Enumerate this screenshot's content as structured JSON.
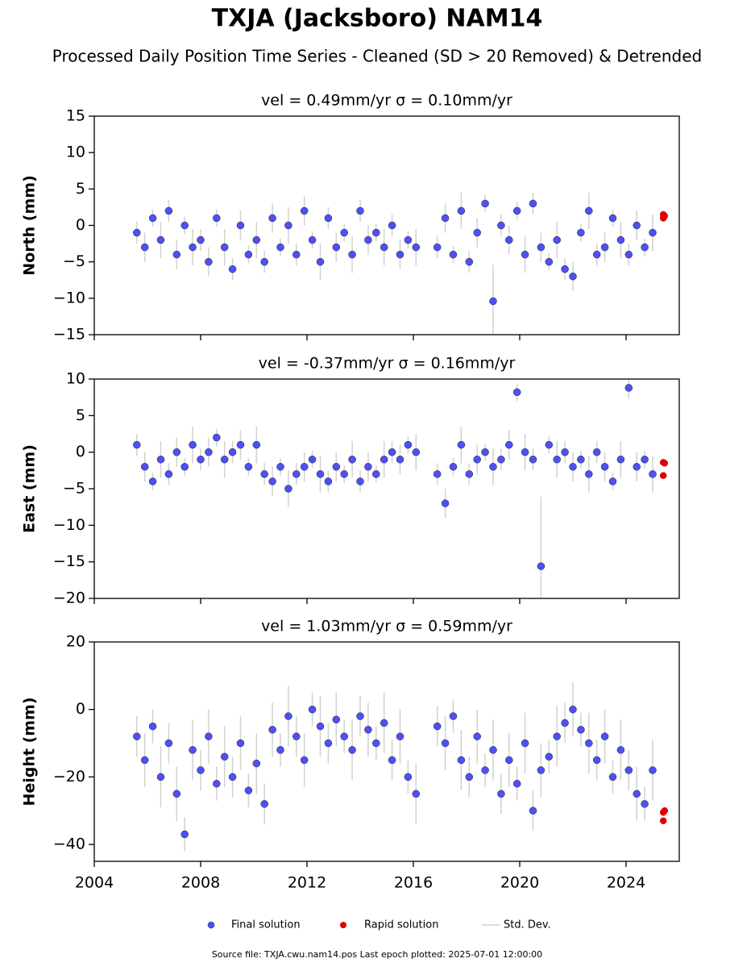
{
  "title": "TXJA (Jacksboro) NAM14",
  "subtitle": "Processed Daily Position Time Series - Cleaned (SD > 20 Removed) & Detrended",
  "error_label": "Std. Dev.",
  "footer": "Source file: TXJA.cwu.nam14.pos  Last epoch plotted: 2025-07-01 12:00:00",
  "chart_data": [
    {
      "type": "scatter",
      "title": "vel = 0.49mm/yr   σ = 0.10mm/yr",
      "y_label": "North (mm)",
      "xlim": [
        2004,
        2026
      ],
      "xticks": [
        2004,
        2008,
        2012,
        2016,
        2020,
        2024
      ],
      "ylim": [
        -15,
        15
      ],
      "yticks": [
        {
          "value": -15,
          "label": "−15"
        },
        {
          "value": -10,
          "label": "−10"
        },
        {
          "value": -5,
          "label": "−5"
        },
        0,
        5,
        10,
        15
      ],
      "error_color": "#999999",
      "series": [
        {
          "name": "Final solution",
          "color": "#4f4ff5",
          "x": [
            2005.6,
            2005.9,
            2006.2,
            2006.5,
            2006.8,
            2007.1,
            2007.4,
            2007.7,
            2008.0,
            2008.3,
            2008.6,
            2008.9,
            2009.2,
            2009.5,
            2009.8,
            2010.1,
            2010.4,
            2010.7,
            2011.0,
            2011.3,
            2011.6,
            2011.9,
            2012.2,
            2012.5,
            2012.8,
            2013.1,
            2013.4,
            2013.7,
            2014.0,
            2014.3,
            2014.6,
            2014.9,
            2015.2,
            2015.5,
            2015.8,
            2016.1,
            2016.9,
            2017.2,
            2017.5,
            2017.8,
            2018.1,
            2018.4,
            2018.7,
            2019.0,
            2019.3,
            2019.6,
            2019.9,
            2020.2,
            2020.5,
            2020.8,
            2021.1,
            2021.4,
            2021.7,
            2022.0,
            2022.3,
            2022.6,
            2022.9,
            2023.2,
            2023.5,
            2023.8,
            2024.1,
            2024.4,
            2024.7,
            2025.0
          ],
          "values": [
            -1,
            -3,
            1,
            -2,
            2,
            -4,
            0,
            -3,
            -2,
            -5,
            1,
            -3,
            -6,
            0,
            -4,
            -2,
            -5,
            1,
            -3,
            0,
            -4,
            2,
            -2,
            -5,
            1,
            -3,
            -1,
            -4,
            2,
            -2,
            -1,
            -3,
            0,
            -4,
            -2,
            -3,
            -3,
            1,
            -4,
            2,
            -5,
            -1,
            3,
            -10.4,
            0,
            -2,
            2,
            -4,
            3,
            -3,
            -5,
            -2,
            -6,
            -7,
            -1,
            2,
            -4,
            -3,
            1,
            -2,
            -4,
            0,
            -3,
            -1
          ],
          "errors": [
            1.5,
            2,
            1.2,
            2.5,
            1.5,
            2,
            1.2,
            2.5,
            1.5,
            2,
            1.2,
            2.5,
            1.5,
            2,
            1.2,
            2.5,
            1.5,
            2,
            1.2,
            2.5,
            1.5,
            2,
            1.2,
            2.5,
            1.5,
            2,
            1.2,
            2.5,
            1.5,
            2,
            1.2,
            2.5,
            1.5,
            2,
            1.2,
            2.5,
            1.5,
            2,
            1.2,
            2.5,
            1.5,
            2,
            1.2,
            5,
            1.5,
            2,
            1.2,
            2.5,
            1.5,
            2,
            1.2,
            2.5,
            1.5,
            2,
            1.2,
            2.5,
            1.5,
            2,
            1.2,
            2.5,
            1.5,
            2,
            1.2,
            2.5
          ]
        },
        {
          "name": "Rapid solution",
          "color": "#e00000",
          "x": [
            2025.4,
            2025.4,
            2025.45
          ],
          "values": [
            1.0,
            1.5,
            1.3
          ]
        }
      ]
    },
    {
      "type": "scatter",
      "title": "vel = -0.37mm/yr   σ = 0.16mm/yr",
      "y_label": "East (mm)",
      "xlim": [
        2004,
        2026
      ],
      "xticks": [
        2004,
        2008,
        2012,
        2016,
        2020,
        2024
      ],
      "ylim": [
        -20,
        10
      ],
      "yticks": [
        {
          "value": -20,
          "label": "−20"
        },
        {
          "value": -15,
          "label": "−15"
        },
        {
          "value": -10,
          "label": "−10"
        },
        {
          "value": -5,
          "label": "−5"
        },
        0,
        5,
        10
      ],
      "error_color": "#999999",
      "series": [
        {
          "color": "#4f4ff5",
          "x": [
            2005.6,
            2005.9,
            2006.2,
            2006.5,
            2006.8,
            2007.1,
            2007.4,
            2007.7,
            2008.0,
            2008.3,
            2008.6,
            2008.9,
            2009.2,
            2009.5,
            2009.8,
            2010.1,
            2010.4,
            2010.7,
            2011.0,
            2011.3,
            2011.6,
            2011.9,
            2012.2,
            2012.5,
            2012.8,
            2013.1,
            2013.4,
            2013.7,
            2014.0,
            2014.3,
            2014.6,
            2014.9,
            2015.2,
            2015.5,
            2015.8,
            2016.1,
            2016.9,
            2017.2,
            2017.5,
            2017.8,
            2018.1,
            2018.4,
            2018.7,
            2019.0,
            2019.3,
            2019.6,
            2019.9,
            2020.2,
            2020.5,
            2020.8,
            2021.1,
            2021.4,
            2021.7,
            2022.0,
            2022.3,
            2022.6,
            2022.9,
            2023.2,
            2023.5,
            2023.8,
            2024.1,
            2024.4,
            2024.7,
            2025.0
          ],
          "values": [
            1,
            -2,
            -4,
            -1,
            -3,
            0,
            -2,
            1,
            -1,
            0,
            2,
            -1,
            0,
            1,
            -2,
            1,
            -3,
            -4,
            -2,
            -5,
            -3,
            -2,
            -1,
            -3,
            -4,
            -2,
            -3,
            -1,
            -4,
            -2,
            -3,
            -1,
            0,
            -1,
            1,
            0,
            -3,
            -7,
            -2,
            1,
            -3,
            -1,
            0,
            -2,
            -1,
            1,
            8.2,
            0,
            -1,
            -15.6,
            1,
            -1,
            0,
            -2,
            -1,
            -3,
            0,
            -2,
            -4,
            -1,
            8.8,
            -2,
            -1,
            -3
          ],
          "errors": [
            1.5,
            2,
            1.2,
            2.5,
            1.5,
            2,
            1.2,
            2.5,
            1.5,
            2,
            1.2,
            2.5,
            1.5,
            2,
            1.2,
            2.5,
            1.5,
            2,
            1.2,
            2.5,
            1.5,
            2,
            1.2,
            2.5,
            1.5,
            2,
            1.2,
            2.5,
            1.5,
            2,
            1.2,
            2.5,
            1.5,
            2,
            1.2,
            2.5,
            1.5,
            2,
            1.2,
            2.5,
            1.5,
            2,
            1.2,
            2.5,
            1.5,
            2,
            1.2,
            2.5,
            1.5,
            9.5,
            1.2,
            2.5,
            1.5,
            2,
            1.2,
            2.5,
            1.5,
            2,
            1.2,
            2.5,
            1.5,
            2,
            1.2,
            2.5
          ]
        },
        {
          "color": "#e00000",
          "x": [
            2025.4,
            2025.4,
            2025.45
          ],
          "values": [
            -1.4,
            -3.2,
            -1.5
          ]
        }
      ]
    },
    {
      "type": "scatter",
      "title": "vel = 1.03mm/yr   σ = 0.59mm/yr",
      "y_label": "Height (mm)",
      "xlim": [
        2004,
        2026
      ],
      "xticks": [
        2004,
        2008,
        2012,
        2016,
        2020,
        2024
      ],
      "ylim": [
        -45,
        20
      ],
      "yticks": [
        {
          "value": -40,
          "label": "−40"
        },
        {
          "value": -20,
          "label": "−20"
        },
        0,
        20
      ],
      "error_color": "#999999",
      "series": [
        {
          "color": "#4f4ff5",
          "x": [
            2005.6,
            2005.9,
            2006.2,
            2006.5,
            2006.8,
            2007.1,
            2007.4,
            2007.7,
            2008.0,
            2008.3,
            2008.6,
            2008.9,
            2009.2,
            2009.5,
            2009.8,
            2010.1,
            2010.4,
            2010.7,
            2011.0,
            2011.3,
            2011.6,
            2011.9,
            2012.2,
            2012.5,
            2012.8,
            2013.1,
            2013.4,
            2013.7,
            2014.0,
            2014.3,
            2014.6,
            2014.9,
            2015.2,
            2015.5,
            2015.8,
            2016.1,
            2016.9,
            2017.2,
            2017.5,
            2017.8,
            2018.1,
            2018.4,
            2018.7,
            2019.0,
            2019.3,
            2019.6,
            2019.9,
            2020.2,
            2020.5,
            2020.8,
            2021.1,
            2021.4,
            2021.7,
            2022.0,
            2022.3,
            2022.6,
            2022.9,
            2023.2,
            2023.5,
            2023.8,
            2024.1,
            2024.4,
            2024.7,
            2025.0
          ],
          "values": [
            -8,
            -15,
            -5,
            -20,
            -10,
            -25,
            -37,
            -12,
            -18,
            -8,
            -22,
            -14,
            -20,
            -10,
            -24,
            -16,
            -28,
            -6,
            -12,
            -2,
            -8,
            -15,
            0,
            -5,
            -10,
            -3,
            -8,
            -12,
            -2,
            -6,
            -10,
            -4,
            -15,
            -8,
            -20,
            -25,
            -5,
            -10,
            -2,
            -15,
            -20,
            -8,
            -18,
            -12,
            -25,
            -15,
            -22,
            -10,
            -30,
            -18,
            -14,
            -8,
            -4,
            0,
            -6,
            -10,
            -15,
            -8,
            -20,
            -12,
            -18,
            -25,
            -28,
            -18
          ],
          "errors": [
            6,
            8,
            5,
            9,
            6,
            8,
            5,
            9,
            6,
            8,
            5,
            9,
            6,
            8,
            5,
            9,
            6,
            8,
            5,
            9,
            6,
            8,
            5,
            9,
            6,
            8,
            5,
            9,
            6,
            8,
            5,
            9,
            6,
            8,
            5,
            9,
            6,
            8,
            5,
            9,
            6,
            8,
            5,
            9,
            6,
            8,
            5,
            9,
            6,
            8,
            5,
            9,
            6,
            8,
            5,
            9,
            6,
            8,
            5,
            9,
            6,
            8,
            5,
            9
          ]
        },
        {
          "color": "#e00000",
          "x": [
            2025.4,
            2025.4,
            2025.45
          ],
          "values": [
            -30.5,
            -33,
            -30
          ]
        }
      ]
    }
  ]
}
